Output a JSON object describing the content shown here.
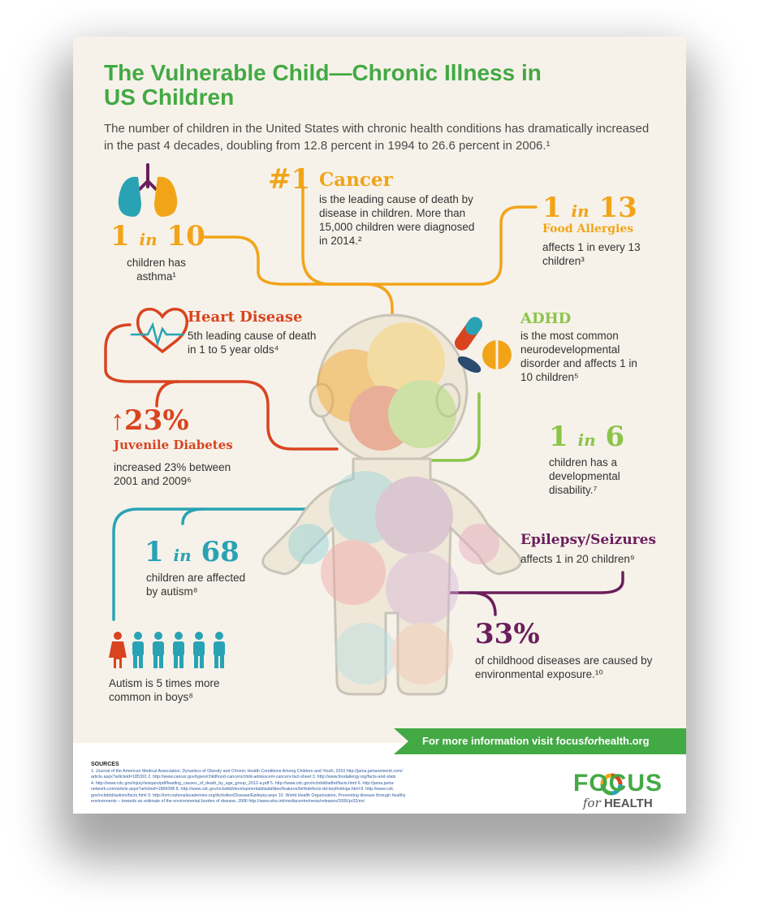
{
  "title_line1": "The Vulnerable Child—Chronic Illness in",
  "title_line2": "US Children",
  "intro": "The number of children in the United States with chronic health conditions has dramatically increased in the past 4 decades, doubling from 12.8 percent in 1994 to 26.6 percent in 2006.¹",
  "asthma": {
    "num_left": "1",
    "in": "in",
    "num_right": "10",
    "text": "children has asthma¹"
  },
  "cancer": {
    "rank": "#1",
    "heading": "Cancer",
    "text": "is the leading cause of death by disease in children. More than 15,000 children were diagnosed in 2014.²"
  },
  "food": {
    "num_left": "1",
    "in": "in",
    "num_right": "13",
    "heading": "Food Allergies",
    "text": "affects 1 in every 13 children³"
  },
  "heart": {
    "heading": "Heart Disease",
    "text": "5th leading cause of death in 1 to 5 year olds⁴"
  },
  "adhd": {
    "heading": "ADHD",
    "text": "is the most common neurodevelopmental disorder and affects 1 in 10 children⁵"
  },
  "diabetes": {
    "arrow": "↑",
    "value": "23%",
    "heading": "Juvenile Diabetes",
    "text": "increased 23% between 2001 and 2009⁶"
  },
  "developmental": {
    "num_left": "1",
    "in": "in",
    "num_right": "6",
    "text": "children has a developmental disability.⁷"
  },
  "autism": {
    "num_left": "1",
    "in": "in",
    "num_right": "68",
    "text": "children are affected by autism⁸",
    "boys_text": "Autism is 5 times more common in boys⁸"
  },
  "epilepsy": {
    "heading": "Epilepsy/Seizures",
    "text": "affects 1 in 20 children⁹"
  },
  "environment": {
    "value": "33%",
    "text": "of childhood diseases are caused by environmental exposure.¹⁰"
  },
  "banner": {
    "pre": "For more information visit focus",
    "italic": "for",
    "post": "health.org"
  },
  "sources": {
    "title": "SOURCES",
    "lines": [
      "1. Journal of the American Medical Association, Dynamics of Obesity and Chronic Health Conditions Among Children and Youth, 2010  http://jama.jamanetwork.com/",
      "article.aspx?articleid=185391  2. http://www.cancer.gov/types/childhood-cancers/child-adolescent-cancers-fact-sheet 3. http://www.foodallergy.org/facts-and-stats",
      "4. http://www.cdc.gov/injury/wisqars/pdf/leading_causes_of_death_by_age_group_2012-a.pdf  5. http://www.cdc.gov/ncbddd/adhd/facts.html  6. http://jama.jama-",
      "network.com/article.aspx?articleid=1866098  8. http://www.cdc.gov/ncbddd/developmentaldisabilities/features/birthdefects-dd-keyfindings.html  8. http://www.cdc.",
      "gov/ncbddd/autism/facts.html  9. http://iom.nationalacademies.org/Activities/Disease/Epilepsy.aspx  10. World Health Organization, Preventing disease through healthy",
      "environments – towards an estimate of the environmental burden of disease, 2006 http://www.who.int/mediacentre/news/releases/2006/pr32/en/"
    ]
  },
  "logo": {
    "focus": "FOCUS",
    "for": "for",
    "health": "HEALTH"
  },
  "colors": {
    "green": "#43a944",
    "orange": "#f2a419",
    "red": "#d9441f",
    "teal": "#29a3b4",
    "lime": "#8cc44a",
    "purple": "#6b1e5c"
  }
}
